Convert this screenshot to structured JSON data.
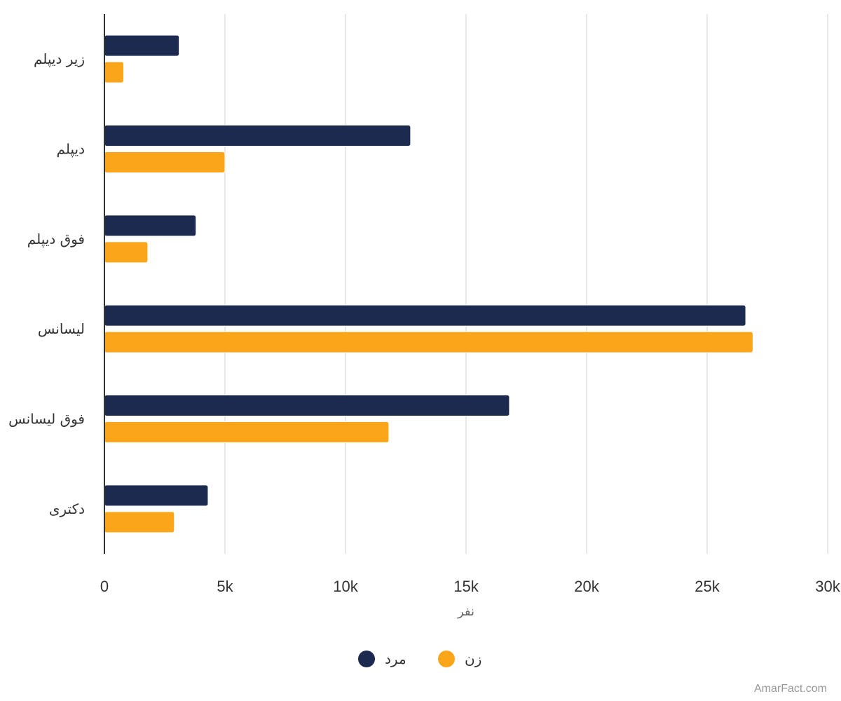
{
  "chart_data": {
    "type": "bar",
    "orientation": "horizontal",
    "categories": [
      "زیر دیپلم",
      "دیپلم",
      "فوق دیپلم",
      "لیسانس",
      "فوق لیسانس",
      "دکتری"
    ],
    "series": [
      {
        "name": "مرد",
        "color": "#1b2a4e",
        "values": [
          3100,
          12700,
          3800,
          26600,
          16800,
          4300
        ]
      },
      {
        "name": "زن",
        "color": "#fba51a",
        "values": [
          800,
          5000,
          1800,
          26900,
          11800,
          2900
        ]
      }
    ],
    "xlabel": "نفر",
    "ylabel": "",
    "xlim": [
      0,
      30000
    ],
    "x_ticks": [
      "0",
      "5k",
      "10k",
      "15k",
      "20k",
      "25k",
      "30k"
    ],
    "grid": true,
    "legend_position": "bottom-center"
  },
  "credit": "AmarFact.com"
}
